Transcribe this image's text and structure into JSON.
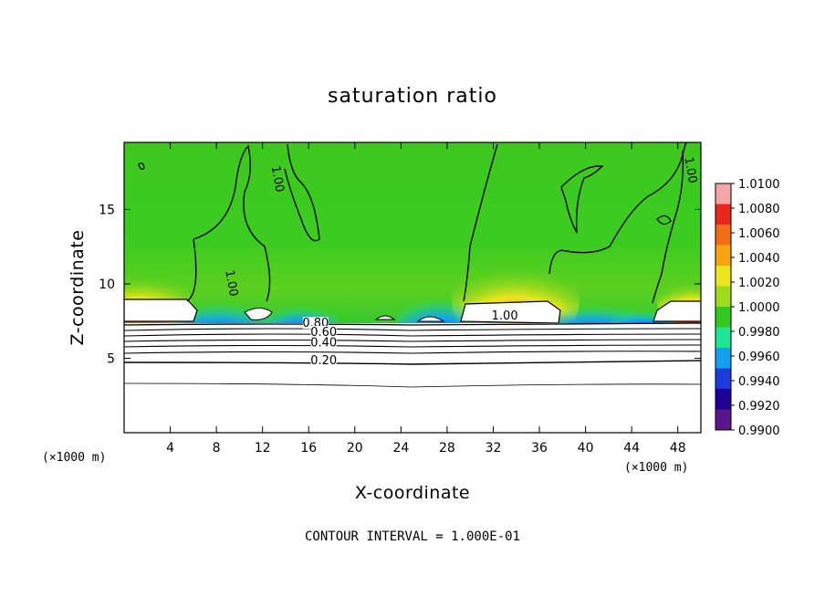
{
  "chart_data": {
    "type": "heatmap",
    "title": "saturation ratio",
    "xlabel": "X-coordinate",
    "ylabel": "Z-coordinate",
    "x_unit": "(×1000 m)",
    "x_unit_right": "(×1000 m)",
    "xlim": [
      0,
      50
    ],
    "ylim": [
      0,
      19.5
    ],
    "x_ticks": [
      4,
      8,
      12,
      16,
      20,
      24,
      28,
      32,
      36,
      40,
      44,
      48
    ],
    "y_ticks": [
      5,
      10,
      15
    ],
    "colorbar": {
      "range": [
        0.99,
        1.01
      ],
      "ticks": [
        "1.0100",
        "1.0080",
        "1.0060",
        "1.0040",
        "1.0020",
        "1.0000",
        "0.9980",
        "0.9960",
        "0.9940",
        "0.9920",
        "0.9900"
      ],
      "colors": [
        "#f4a6a6",
        "#e8281e",
        "#f06e14",
        "#f5a50f",
        "#ebe61e",
        "#a0dc1e",
        "#32c81e",
        "#1ee696",
        "#14a0f0",
        "#1e3cdc",
        "#1e0096",
        "#5a148c"
      ]
    },
    "contour_labels": [
      {
        "text": "1.00",
        "x": 13.0,
        "y": 17.0
      },
      {
        "text": "1.00",
        "x": 9.0,
        "y": 10.0
      },
      {
        "text": "1.00",
        "x": 48.8,
        "y": 17.6
      },
      {
        "text": "1.00",
        "x": 33.0,
        "y": 7.6
      },
      {
        "text": "0.80",
        "x": 16.6,
        "y": 7.1
      },
      {
        "text": "0.60",
        "x": 17.3,
        "y": 6.5
      },
      {
        "text": "0.40",
        "x": 17.3,
        "y": 5.8
      },
      {
        "text": "0.20",
        "x": 17.3,
        "y": 4.6
      }
    ],
    "grid": false
  },
  "footer": "CONTOUR INTERVAL = 1.000E-01"
}
